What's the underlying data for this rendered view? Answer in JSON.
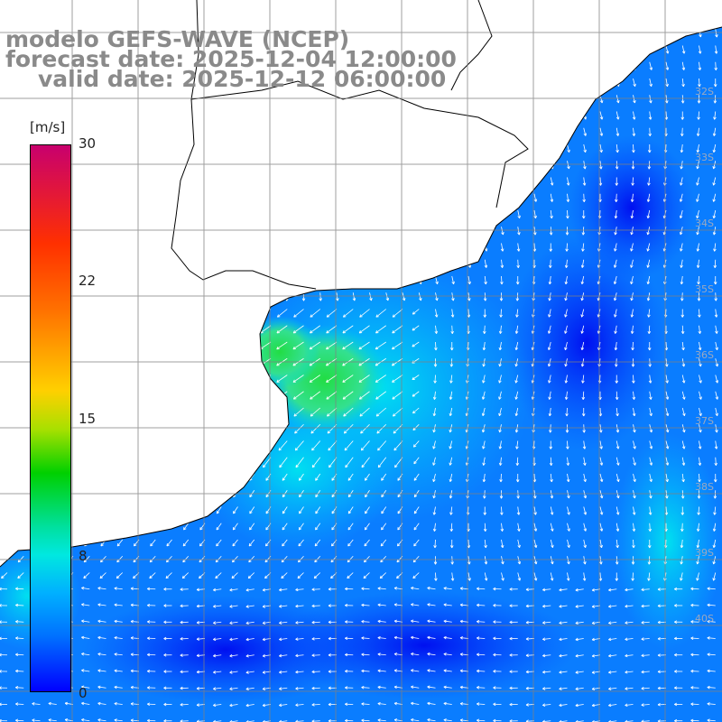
{
  "title": {
    "line1": "modelo GEFS-WAVE (NCEP)",
    "line2": "forecast date: 2025-12-04 12:00:00",
    "line3": "valid date: 2025-12-12 06:00:00"
  },
  "colorbar": {
    "unit": "[m/s]",
    "ticks": [
      "30",
      "22",
      "15",
      "8",
      "0"
    ],
    "colors": [
      "#c8006e",
      "#ff3000",
      "#ff7000",
      "#ffd000",
      "#00d000",
      "#00e8e0",
      "#00b0ff",
      "#0000ff"
    ]
  },
  "map": {
    "lat_labels": [
      "32S",
      "33S",
      "34S",
      "35S",
      "36S",
      "37S",
      "38S",
      "39S",
      "40S"
    ],
    "land_color": "#ffffff",
    "grid_color": "#808080",
    "arrow_color": "#ffffff"
  }
}
